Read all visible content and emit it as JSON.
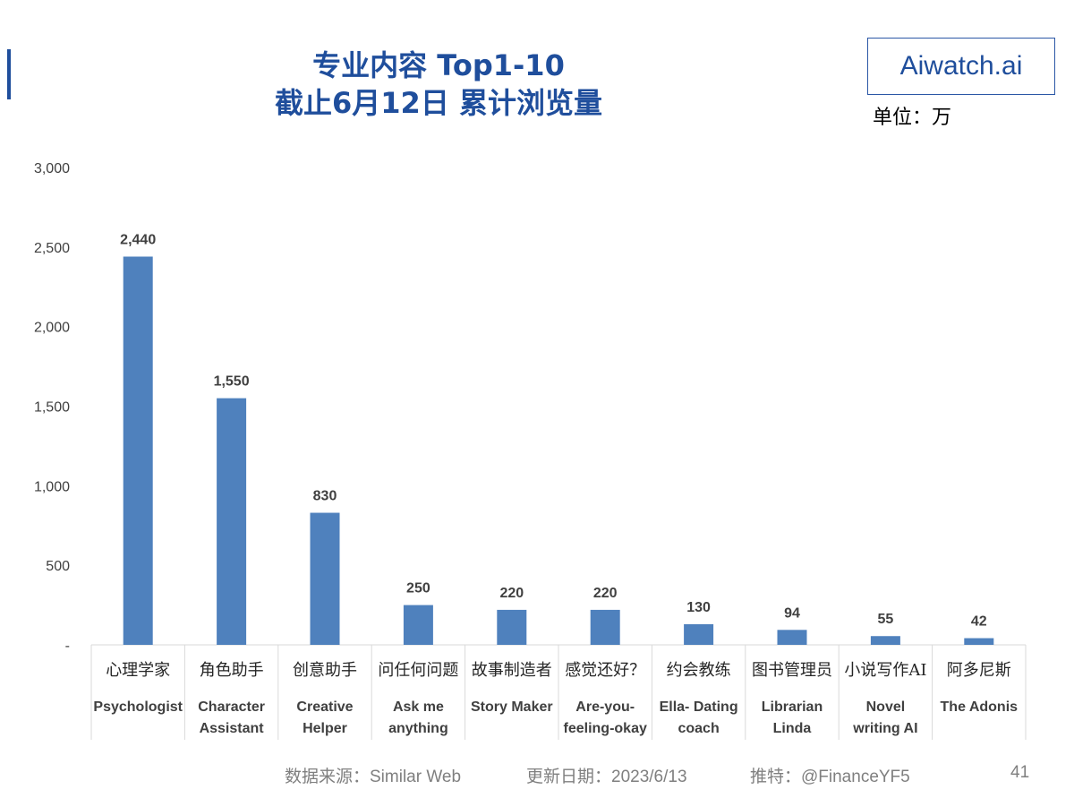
{
  "header": {
    "title_line1": "专业内容 Top1-10",
    "title_line2": "截止6月12日 累计浏览量",
    "brand": "Aiwatch.ai",
    "unit_label": "单位：万"
  },
  "chart_data": {
    "type": "bar",
    "title": "专业内容 Top1-10 截止6月12日 累计浏览量",
    "unit": "万",
    "categories_cn": [
      "心理学家",
      "角色助手",
      "创意助手",
      "问任何问题",
      "故事制造者",
      "感觉还好？",
      "约会教练",
      "图书管理员",
      "小说写作AI",
      "阿多尼斯"
    ],
    "categories_en": [
      [
        "Psychologist"
      ],
      [
        "Character",
        "Assistant"
      ],
      [
        "Creative",
        "Helper"
      ],
      [
        "Ask me",
        "anything"
      ],
      [
        "Story Maker"
      ],
      [
        "Are-you-",
        "feeling-okay"
      ],
      [
        "Ella- Dating",
        "coach"
      ],
      [
        "Librarian",
        "Linda"
      ],
      [
        "Novel",
        "writing AI"
      ],
      [
        "The Adonis"
      ]
    ],
    "values": [
      2440,
      1550,
      830,
      250,
      220,
      220,
      130,
      94,
      55,
      42
    ],
    "value_labels": [
      "2,440",
      "1,550",
      "830",
      "250",
      "220",
      "220",
      "130",
      "94",
      "55",
      "42"
    ],
    "ylim": [
      0,
      3000
    ],
    "yticks": [
      0,
      500,
      1000,
      1500,
      2000,
      2500,
      3000
    ],
    "ytick_labels": [
      "-",
      "500",
      "1,000",
      "1,500",
      "2,000",
      "2,500",
      "3,000"
    ],
    "bar_color": "#4f81bd"
  },
  "footer": {
    "source": "数据来源：Similar Web",
    "updated": "更新日期：2023/6/13",
    "twitter": "推特：@FinanceYF5",
    "page_number": "41"
  }
}
